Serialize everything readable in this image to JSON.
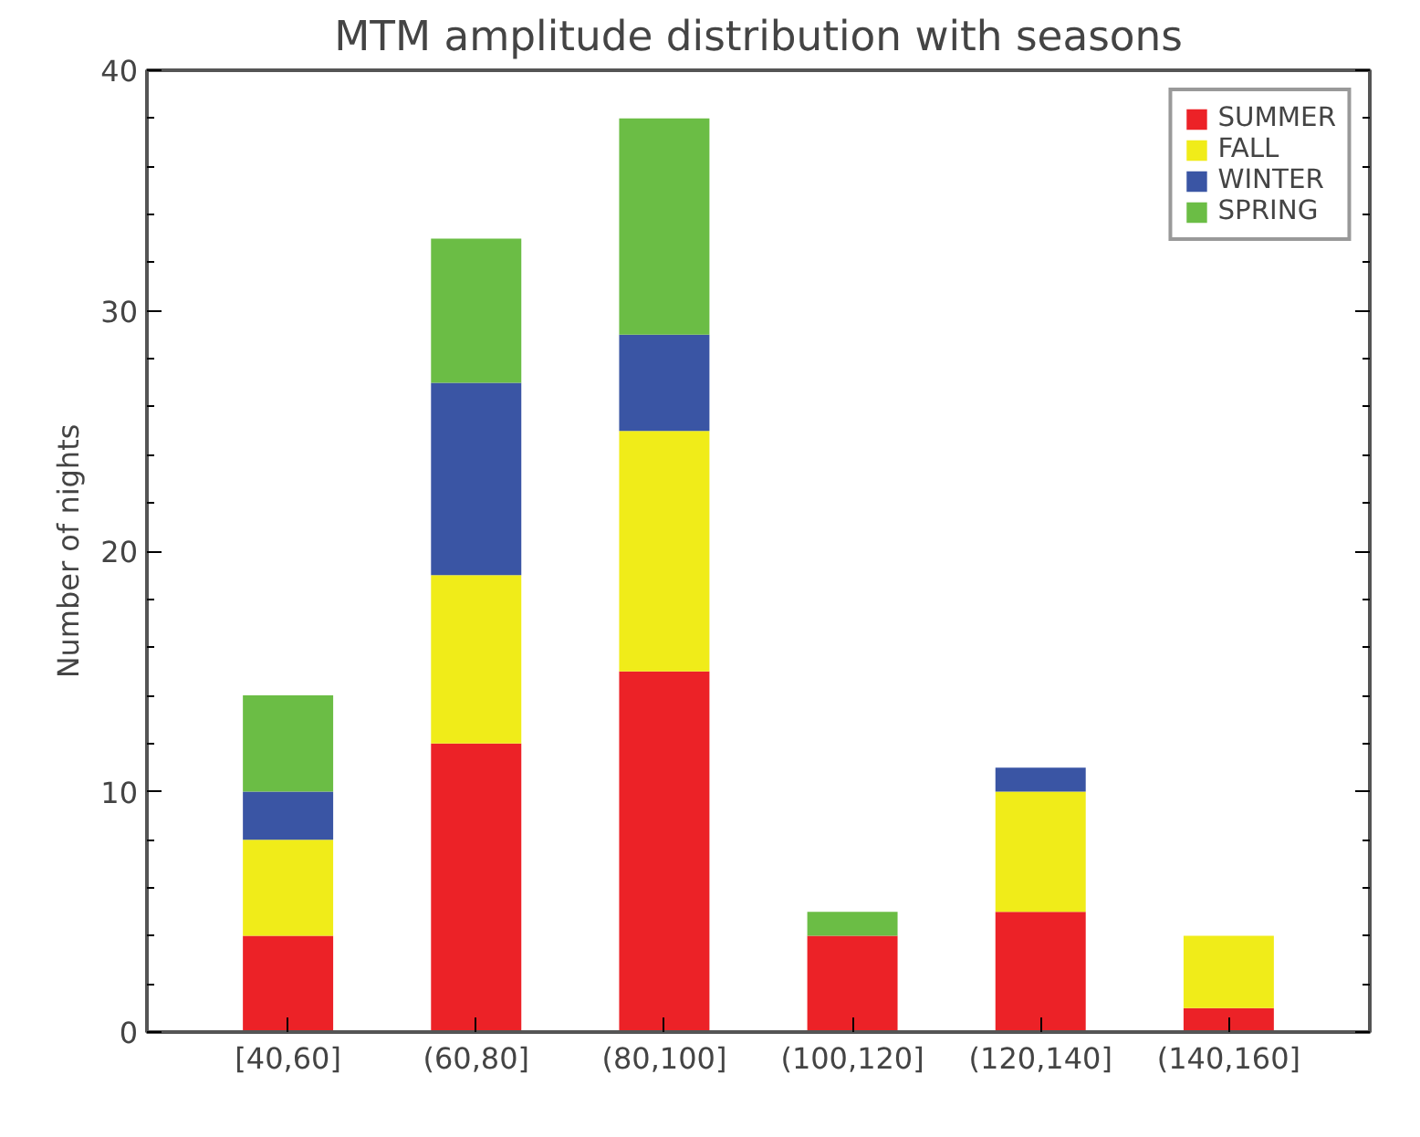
{
  "chart_data": {
    "type": "bar",
    "stacked": true,
    "title": "MTM amplitude distribution with seasons",
    "ylabel": "Number of nights",
    "categories": [
      "[40,60]",
      "(60,80]",
      "(80,100]",
      "(100,120]",
      "(120,140]",
      "(140,160]"
    ],
    "series": [
      {
        "name": "SUMMER",
        "color": "#ec2227",
        "values": [
          4,
          12,
          15,
          4,
          5,
          1
        ]
      },
      {
        "name": "FALL",
        "color": "#f0ec19",
        "values": [
          4,
          7,
          10,
          0,
          5,
          3
        ]
      },
      {
        "name": "WINTER",
        "color": "#3a55a4",
        "values": [
          2,
          8,
          4,
          0,
          1,
          0
        ]
      },
      {
        "name": "SPRING",
        "color": "#6bbd45",
        "values": [
          4,
          6,
          9,
          1,
          0,
          0
        ]
      }
    ],
    "ylim": [
      0,
      40
    ],
    "yticks": [
      0,
      10,
      20,
      30,
      40
    ],
    "grid": false,
    "legend": "top right"
  }
}
